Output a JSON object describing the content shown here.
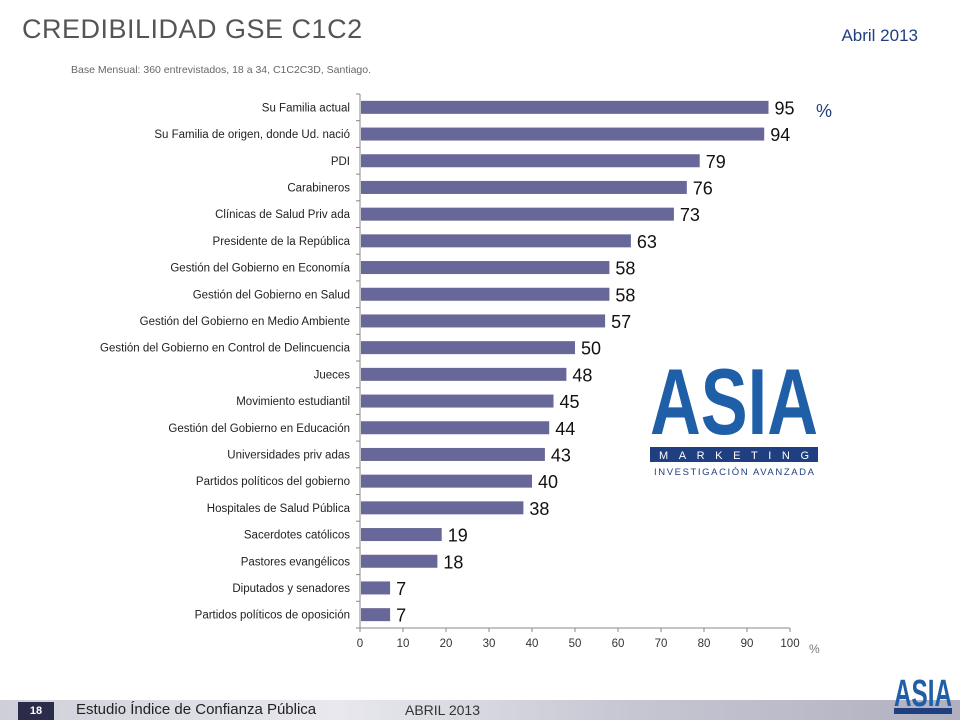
{
  "header": {
    "title": "CREDIBILIDAD GSE C1C2",
    "date": "Abril 2013",
    "subtitle": "Base Mensual:  360 entrevistados, 18 a 34, C1C2C3D, Santiago."
  },
  "logo": {
    "text": "ASIA",
    "band": "MARKETING",
    "tagline": "INVESTIGACIÓN AVANZADA"
  },
  "footer": {
    "page_number": "18",
    "text": "Estudio  Índice de Confianza Pública",
    "date": "ABRIL 2013"
  },
  "chart_data": {
    "type": "bar",
    "orientation": "horizontal",
    "categories": [
      "Su Familia actual",
      "Su Familia de origen, donde Ud. nació",
      "PDI",
      "Carabineros",
      "Clínicas de Salud Priv ada",
      "Presidente de la República",
      "Gestión del Gobierno en Economía",
      "Gestión del Gobierno en Salud",
      "Gestión del Gobierno en Medio Ambiente",
      "Gestión del Gobierno en Control de Delincuencia",
      "Jueces",
      "Movimiento estudiantil",
      "Gestión del Gobierno en Educación",
      "Universidades priv adas",
      "Partidos políticos del gobierno",
      "Hospitales de Salud Pública",
      "Sacerdotes católicos",
      "Pastores evangélicos",
      "Diputados y senadores",
      "Partidos políticos de oposición"
    ],
    "values": [
      95,
      94,
      79,
      76,
      73,
      63,
      58,
      58,
      57,
      50,
      48,
      45,
      44,
      43,
      40,
      38,
      19,
      18,
      7,
      7
    ],
    "xlim": [
      0,
      100
    ],
    "xticks": [
      0,
      10,
      20,
      30,
      40,
      50,
      60,
      70,
      80,
      90,
      100
    ],
    "unit_top": "%",
    "unit_axis": "%",
    "bar_color": "#67679a",
    "grid": false
  }
}
